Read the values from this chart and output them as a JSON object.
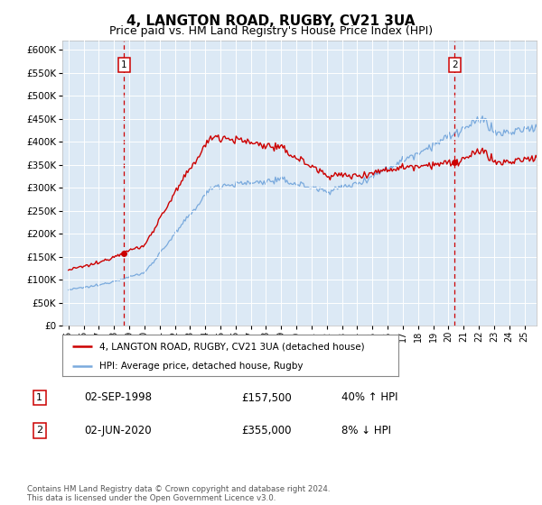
{
  "title": "4, LANGTON ROAD, RUGBY, CV21 3UA",
  "subtitle": "Price paid vs. HM Land Registry's House Price Index (HPI)",
  "plot_bg_color": "#dce9f5",
  "ylim": [
    0,
    620000
  ],
  "yticks": [
    0,
    50000,
    100000,
    150000,
    200000,
    250000,
    300000,
    350000,
    400000,
    450000,
    500000,
    550000,
    600000
  ],
  "xlim_start": 1994.6,
  "xlim_end": 2025.8,
  "sale1_x": 1998.67,
  "sale1_price": 157500,
  "sale2_x": 2020.42,
  "sale2_price": 355000,
  "legend_line1": "4, LANGTON ROAD, RUGBY, CV21 3UA (detached house)",
  "legend_line2": "HPI: Average price, detached house, Rugby",
  "sale1_date": "02-SEP-1998",
  "sale1_pct": "40% ↑ HPI",
  "sale1_price_str": "£157,500",
  "sale2_date": "02-JUN-2020",
  "sale2_pct": "8% ↓ HPI",
  "sale2_price_str": "£355,000",
  "footer": "Contains HM Land Registry data © Crown copyright and database right 2024.\nThis data is licensed under the Open Government Licence v3.0.",
  "red_color": "#cc0000",
  "blue_color": "#7aaadd",
  "title_fontsize": 11,
  "subtitle_fontsize": 9
}
